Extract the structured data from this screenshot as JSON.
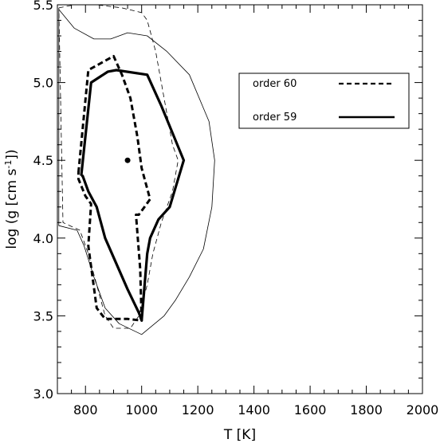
{
  "chart_data": {
    "type": "line",
    "xlabel": "T [K]",
    "ylabel_parts": [
      "log (g [cm s",
      "-1",
      "])"
    ],
    "xlim": [
      700,
      2000
    ],
    "ylim": [
      3.0,
      5.5
    ],
    "xticks": [
      800,
      1000,
      1200,
      1400,
      1600,
      1800,
      2000
    ],
    "yticks": [
      3.0,
      3.5,
      4.0,
      4.5,
      5.0,
      5.5
    ],
    "xtick_labels": [
      "800",
      "1000",
      "1200",
      "1400",
      "1600",
      "1800",
      "2000"
    ],
    "ytick_labels": [
      "3.0",
      "3.5",
      "4.0",
      "4.5",
      "5.0",
      "5.5"
    ],
    "legend": [
      {
        "label": "order 60",
        "style": "dashed"
      },
      {
        "label": "order 59",
        "style": "solid"
      }
    ],
    "best_fit_point": {
      "x": 950,
      "y": 4.5
    },
    "series": [
      {
        "name": "order 60",
        "style": "dashed",
        "weight": "thick",
        "x": [
          775,
          810,
          900,
          930,
          960,
          985,
          1000,
          1030,
          990,
          980,
          995,
          1000,
          950,
          870,
          840,
          810,
          820,
          800,
          775,
          775
        ],
        "y": [
          4.42,
          5.08,
          5.17,
          5.05,
          4.9,
          4.65,
          4.45,
          4.25,
          4.15,
          4.15,
          3.8,
          3.47,
          3.48,
          3.48,
          3.55,
          3.95,
          4.22,
          4.27,
          4.38,
          4.42
        ]
      },
      {
        "name": "order 59",
        "style": "solid",
        "weight": "thick",
        "x": [
          785,
          820,
          880,
          910,
          1020,
          1070,
          1150,
          1100,
          1060,
          1030,
          1020,
          1000,
          990,
          950,
          870,
          840,
          810,
          790,
          785
        ],
        "y": [
          4.4,
          5.0,
          5.07,
          5.08,
          5.05,
          4.85,
          4.5,
          4.2,
          4.12,
          4.0,
          3.9,
          3.47,
          3.52,
          3.67,
          4.0,
          4.2,
          4.3,
          4.4,
          4.4
        ]
      },
      {
        "name": "outer solid",
        "style": "solid",
        "weight": "thin",
        "x": [
          705,
          760,
          830,
          890,
          950,
          1020,
          1090,
          1170,
          1240,
          1260,
          1250,
          1220,
          1170,
          1120,
          1080,
          1000,
          920,
          870,
          830,
          795,
          770,
          705,
          705
        ],
        "y": [
          5.47,
          5.35,
          5.28,
          5.28,
          5.32,
          5.3,
          5.2,
          5.05,
          4.75,
          4.5,
          4.2,
          3.93,
          3.75,
          3.6,
          3.5,
          3.38,
          3.45,
          3.55,
          3.75,
          3.95,
          4.05,
          4.08,
          5.47
        ]
      },
      {
        "name": "outer dashed",
        "style": "dashed",
        "weight": "thin",
        "x": [
          705,
          760,
          840,
          930,
          1000,
          1020,
          1050,
          1085,
          1110,
          1130,
          1110,
          1070,
          1040,
          1020,
          990,
          960,
          900,
          870,
          840,
          810,
          780,
          720,
          705
        ],
        "y": [
          5.48,
          5.5,
          5.5,
          5.48,
          5.45,
          5.4,
          5.2,
          4.85,
          4.6,
          4.5,
          4.3,
          4.1,
          3.9,
          3.7,
          3.5,
          3.42,
          3.42,
          3.5,
          3.7,
          3.9,
          4.05,
          4.1,
          5.48
        ]
      }
    ]
  }
}
